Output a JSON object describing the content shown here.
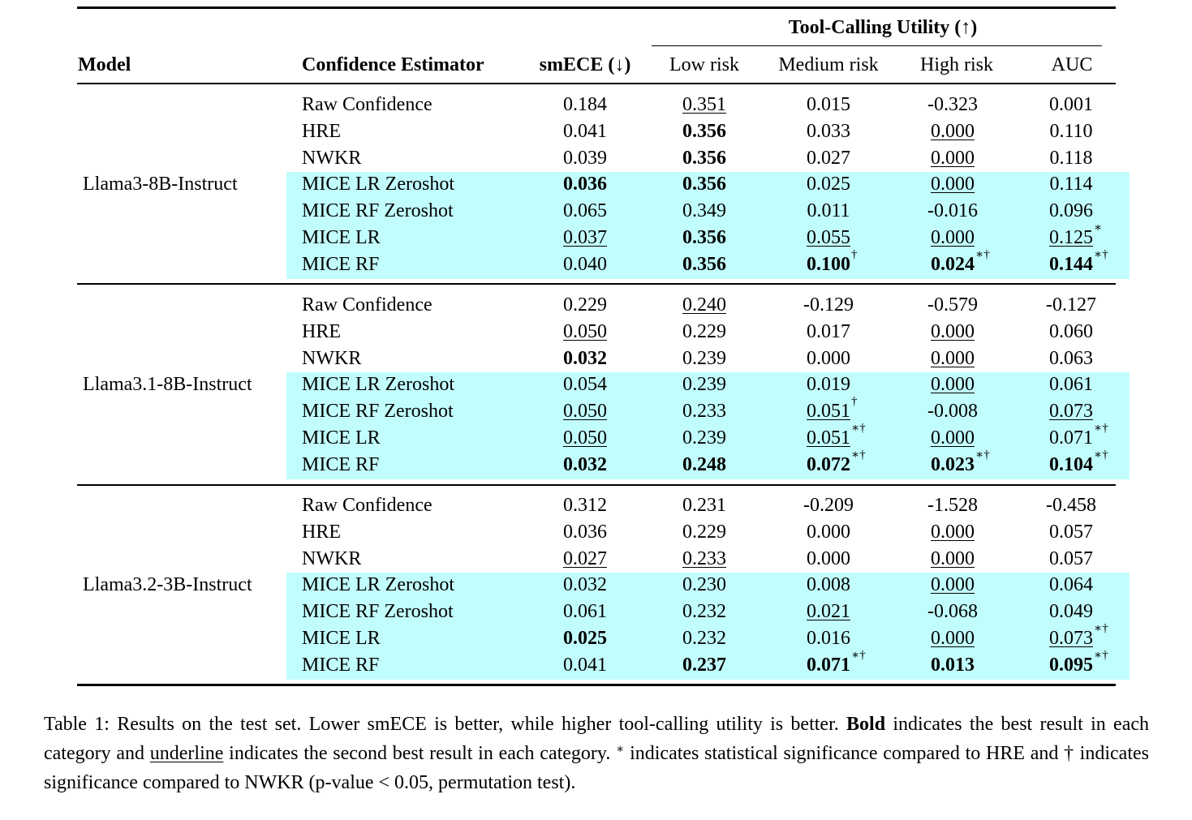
{
  "header": {
    "group_title": "Tool-Calling Utility (↑)",
    "col_model": "Model",
    "col_estimator": "Confidence Estimator",
    "col_smece": "smECE (↓)",
    "col_low": "Low risk",
    "col_medium": "Medium risk",
    "col_high": "High risk",
    "col_auc": "AUC"
  },
  "groups": [
    {
      "model": "Llama3-8B-Instruct",
      "rows": [
        {
          "estimator": "Raw Confidence",
          "highlight": false,
          "cells": [
            {
              "v": "0.184",
              "s": "",
              "m": ""
            },
            {
              "v": "0.351",
              "s": "u",
              "m": ""
            },
            {
              "v": "0.015",
              "s": "",
              "m": ""
            },
            {
              "v": "-0.323",
              "s": "",
              "m": ""
            },
            {
              "v": "0.001",
              "s": "",
              "m": ""
            }
          ]
        },
        {
          "estimator": "HRE",
          "highlight": false,
          "cells": [
            {
              "v": "0.041",
              "s": "",
              "m": ""
            },
            {
              "v": "0.356",
              "s": "b",
              "m": ""
            },
            {
              "v": "0.033",
              "s": "",
              "m": ""
            },
            {
              "v": "0.000",
              "s": "u",
              "m": ""
            },
            {
              "v": "0.110",
              "s": "",
              "m": ""
            }
          ]
        },
        {
          "estimator": "NWKR",
          "highlight": false,
          "cells": [
            {
              "v": "0.039",
              "s": "",
              "m": ""
            },
            {
              "v": "0.356",
              "s": "b",
              "m": ""
            },
            {
              "v": "0.027",
              "s": "",
              "m": ""
            },
            {
              "v": "0.000",
              "s": "u",
              "m": ""
            },
            {
              "v": "0.118",
              "s": "",
              "m": ""
            }
          ]
        },
        {
          "estimator": "MICE LR Zeroshot",
          "highlight": true,
          "cells": [
            {
              "v": "0.036",
              "s": "b",
              "m": ""
            },
            {
              "v": "0.356",
              "s": "b",
              "m": ""
            },
            {
              "v": "0.025",
              "s": "",
              "m": ""
            },
            {
              "v": "0.000",
              "s": "u",
              "m": ""
            },
            {
              "v": "0.114",
              "s": "",
              "m": ""
            }
          ]
        },
        {
          "estimator": "MICE RF Zeroshot",
          "highlight": true,
          "cells": [
            {
              "v": "0.065",
              "s": "",
              "m": ""
            },
            {
              "v": "0.349",
              "s": "",
              "m": ""
            },
            {
              "v": "0.011",
              "s": "",
              "m": ""
            },
            {
              "v": "-0.016",
              "s": "",
              "m": ""
            },
            {
              "v": "0.096",
              "s": "",
              "m": ""
            }
          ]
        },
        {
          "estimator": "MICE LR",
          "highlight": true,
          "cells": [
            {
              "v": "0.037",
              "s": "u",
              "m": ""
            },
            {
              "v": "0.356",
              "s": "b",
              "m": ""
            },
            {
              "v": "0.055",
              "s": "u",
              "m": ""
            },
            {
              "v": "0.000",
              "s": "u",
              "m": ""
            },
            {
              "v": "0.125",
              "s": "u",
              "m": "∗"
            }
          ]
        },
        {
          "estimator": "MICE RF",
          "highlight": true,
          "cells": [
            {
              "v": "0.040",
              "s": "",
              "m": ""
            },
            {
              "v": "0.356",
              "s": "b",
              "m": ""
            },
            {
              "v": "0.100",
              "s": "b",
              "m": "†"
            },
            {
              "v": "0.024",
              "s": "b",
              "m": "∗†"
            },
            {
              "v": "0.144",
              "s": "b",
              "m": "∗†"
            }
          ]
        }
      ]
    },
    {
      "model": "Llama3.1-8B-Instruct",
      "rows": [
        {
          "estimator": "Raw Confidence",
          "highlight": false,
          "cells": [
            {
              "v": "0.229",
              "s": "",
              "m": ""
            },
            {
              "v": "0.240",
              "s": "u",
              "m": ""
            },
            {
              "v": "-0.129",
              "s": "",
              "m": ""
            },
            {
              "v": "-0.579",
              "s": "",
              "m": ""
            },
            {
              "v": "-0.127",
              "s": "",
              "m": ""
            }
          ]
        },
        {
          "estimator": "HRE",
          "highlight": false,
          "cells": [
            {
              "v": "0.050",
              "s": "u",
              "m": ""
            },
            {
              "v": "0.229",
              "s": "",
              "m": ""
            },
            {
              "v": "0.017",
              "s": "",
              "m": ""
            },
            {
              "v": "0.000",
              "s": "u",
              "m": ""
            },
            {
              "v": "0.060",
              "s": "",
              "m": ""
            }
          ]
        },
        {
          "estimator": "NWKR",
          "highlight": false,
          "cells": [
            {
              "v": "0.032",
              "s": "b",
              "m": ""
            },
            {
              "v": "0.239",
              "s": "",
              "m": ""
            },
            {
              "v": "0.000",
              "s": "",
              "m": ""
            },
            {
              "v": "0.000",
              "s": "u",
              "m": ""
            },
            {
              "v": "0.063",
              "s": "",
              "m": ""
            }
          ]
        },
        {
          "estimator": "MICE LR Zeroshot",
          "highlight": true,
          "cells": [
            {
              "v": "0.054",
              "s": "",
              "m": ""
            },
            {
              "v": "0.239",
              "s": "",
              "m": ""
            },
            {
              "v": "0.019",
              "s": "",
              "m": ""
            },
            {
              "v": "0.000",
              "s": "u",
              "m": ""
            },
            {
              "v": "0.061",
              "s": "",
              "m": ""
            }
          ]
        },
        {
          "estimator": "MICE RF Zeroshot",
          "highlight": true,
          "cells": [
            {
              "v": "0.050",
              "s": "u",
              "m": ""
            },
            {
              "v": "0.233",
              "s": "",
              "m": ""
            },
            {
              "v": "0.051",
              "s": "u",
              "m": "†"
            },
            {
              "v": "-0.008",
              "s": "",
              "m": ""
            },
            {
              "v": "0.073",
              "s": "u",
              "m": ""
            }
          ]
        },
        {
          "estimator": "MICE LR",
          "highlight": true,
          "cells": [
            {
              "v": "0.050",
              "s": "u",
              "m": ""
            },
            {
              "v": "0.239",
              "s": "",
              "m": ""
            },
            {
              "v": "0.051",
              "s": "u",
              "m": "∗†"
            },
            {
              "v": "0.000",
              "s": "u",
              "m": ""
            },
            {
              "v": "0.071",
              "s": "",
              "m": "∗†"
            }
          ]
        },
        {
          "estimator": "MICE RF",
          "highlight": true,
          "cells": [
            {
              "v": "0.032",
              "s": "b",
              "m": ""
            },
            {
              "v": "0.248",
              "s": "b",
              "m": ""
            },
            {
              "v": "0.072",
              "s": "b",
              "m": "∗†"
            },
            {
              "v": "0.023",
              "s": "b",
              "m": "∗†"
            },
            {
              "v": "0.104",
              "s": "b",
              "m": "∗†"
            }
          ]
        }
      ]
    },
    {
      "model": "Llama3.2-3B-Instruct",
      "rows": [
        {
          "estimator": "Raw Confidence",
          "highlight": false,
          "cells": [
            {
              "v": "0.312",
              "s": "",
              "m": ""
            },
            {
              "v": "0.231",
              "s": "",
              "m": ""
            },
            {
              "v": "-0.209",
              "s": "",
              "m": ""
            },
            {
              "v": "-1.528",
              "s": "",
              "m": ""
            },
            {
              "v": "-0.458",
              "s": "",
              "m": ""
            }
          ]
        },
        {
          "estimator": "HRE",
          "highlight": false,
          "cells": [
            {
              "v": "0.036",
              "s": "",
              "m": ""
            },
            {
              "v": "0.229",
              "s": "",
              "m": ""
            },
            {
              "v": "0.000",
              "s": "",
              "m": ""
            },
            {
              "v": "0.000",
              "s": "u",
              "m": ""
            },
            {
              "v": "0.057",
              "s": "",
              "m": ""
            }
          ]
        },
        {
          "estimator": "NWKR",
          "highlight": false,
          "cells": [
            {
              "v": "0.027",
              "s": "u",
              "m": ""
            },
            {
              "v": "0.233",
              "s": "u",
              "m": ""
            },
            {
              "v": "0.000",
              "s": "",
              "m": ""
            },
            {
              "v": "0.000",
              "s": "u",
              "m": ""
            },
            {
              "v": "0.057",
              "s": "",
              "m": ""
            }
          ]
        },
        {
          "estimator": "MICE LR Zeroshot",
          "highlight": true,
          "cells": [
            {
              "v": "0.032",
              "s": "",
              "m": ""
            },
            {
              "v": "0.230",
              "s": "",
              "m": ""
            },
            {
              "v": "0.008",
              "s": "",
              "m": ""
            },
            {
              "v": "0.000",
              "s": "u",
              "m": ""
            },
            {
              "v": "0.064",
              "s": "",
              "m": ""
            }
          ]
        },
        {
          "estimator": "MICE RF Zeroshot",
          "highlight": true,
          "cells": [
            {
              "v": "0.061",
              "s": "",
              "m": ""
            },
            {
              "v": "0.232",
              "s": "",
              "m": ""
            },
            {
              "v": "0.021",
              "s": "u",
              "m": ""
            },
            {
              "v": "-0.068",
              "s": "",
              "m": ""
            },
            {
              "v": "0.049",
              "s": "",
              "m": ""
            }
          ]
        },
        {
          "estimator": "MICE LR",
          "highlight": true,
          "cells": [
            {
              "v": "0.025",
              "s": "b",
              "m": ""
            },
            {
              "v": "0.232",
              "s": "",
              "m": ""
            },
            {
              "v": "0.016",
              "s": "",
              "m": ""
            },
            {
              "v": "0.000",
              "s": "u",
              "m": ""
            },
            {
              "v": "0.073",
              "s": "u",
              "m": "∗†"
            }
          ]
        },
        {
          "estimator": "MICE RF",
          "highlight": true,
          "cells": [
            {
              "v": "0.041",
              "s": "",
              "m": ""
            },
            {
              "v": "0.237",
              "s": "b",
              "m": ""
            },
            {
              "v": "0.071",
              "s": "b",
              "m": "∗†"
            },
            {
              "v": "0.013",
              "s": "b",
              "m": ""
            },
            {
              "v": "0.095",
              "s": "b",
              "m": "∗†"
            }
          ]
        }
      ]
    }
  ],
  "caption": {
    "p1": "Table 1: Results on the test set. Lower smECE is better, while higher tool-calling utility is better. ",
    "bold_word": "Bold",
    "p2": " indicates the best result in each category and ",
    "underline_word": "underline",
    "p3": " indicates the second best result in each category. ",
    "star": "∗",
    "p4": " indicates statistical significance compared to HRE and † indicates significance compared to NWKR (p-value < 0.05, permutation test)."
  },
  "colors": {
    "highlight": "#c2fdfd"
  }
}
